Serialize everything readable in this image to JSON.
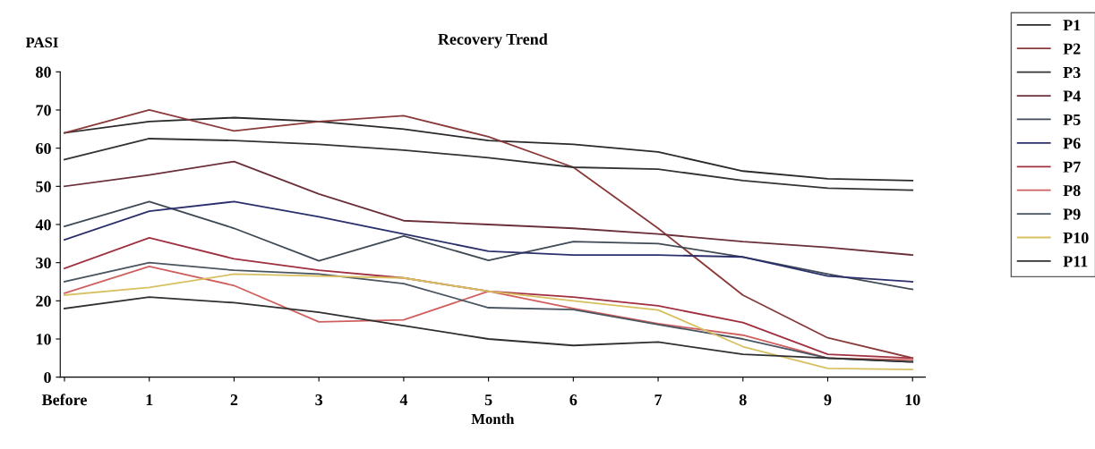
{
  "chart_data": {
    "type": "line",
    "title": "Recovery Trend",
    "xlabel": "Month",
    "ylabel": "PASI",
    "categories": [
      "Before",
      "1",
      "2",
      "3",
      "4",
      "5",
      "6",
      "7",
      "8",
      "9",
      "10"
    ],
    "ylim": [
      0,
      80
    ],
    "yticks": [
      0,
      10,
      20,
      30,
      40,
      50,
      60,
      70,
      80
    ],
    "grid": false,
    "legend": "right",
    "marker": "none",
    "line_style": "solid",
    "series": [
      {
        "name": "P1",
        "color": "#2a2a2a",
        "values": [
          64,
          67,
          68,
          67,
          65,
          62,
          61,
          59,
          54,
          52,
          51.5
        ]
      },
      {
        "name": "P2",
        "color": "#8b3a3a",
        "values": [
          64,
          70,
          64.5,
          67,
          68.5,
          63,
          55,
          39,
          21.5,
          10.3,
          5
        ]
      },
      {
        "name": "P3",
        "color": "#333333",
        "values": [
          57,
          62.5,
          62,
          61,
          59.5,
          57.5,
          55,
          54.5,
          51.5,
          49.5,
          49
        ]
      },
      {
        "name": "P4",
        "color": "#6b2f3a",
        "values": [
          50,
          53,
          56.5,
          48,
          41,
          40,
          39,
          37.5,
          35.5,
          34,
          32
        ]
      },
      {
        "name": "P5",
        "color": "#3f4a55",
        "values": [
          39.5,
          46,
          39,
          30.5,
          37,
          30.6,
          35.5,
          35,
          31.5,
          27,
          23
        ]
      },
      {
        "name": "P6",
        "color": "#2b2f6b",
        "values": [
          36,
          43.5,
          46,
          42,
          37.5,
          33,
          32,
          32,
          31.5,
          26.5,
          25
        ]
      },
      {
        "name": "P7",
        "color": "#a03040",
        "values": [
          28.5,
          36.5,
          31,
          28,
          26,
          22.5,
          21,
          18.7,
          14.3,
          6,
          5
        ]
      },
      {
        "name": "P8",
        "color": "#d06060",
        "values": [
          22,
          29,
          24,
          14.5,
          15,
          22.5,
          18,
          14,
          11,
          5,
          4.5
        ]
      },
      {
        "name": "P9",
        "color": "#4a5560",
        "values": [
          25,
          30,
          28,
          27,
          24.5,
          18.2,
          17.7,
          13.8,
          10,
          5,
          4
        ]
      },
      {
        "name": "P10",
        "color": "#d8c060",
        "values": [
          21.5,
          23.5,
          27,
          26.5,
          26,
          22.5,
          20,
          17.6,
          8,
          2.3,
          2
        ]
      },
      {
        "name": "P11",
        "color": "#303030",
        "values": [
          18,
          21,
          19.5,
          17,
          13.5,
          10,
          8.3,
          9.2,
          6,
          5,
          4
        ]
      }
    ]
  }
}
